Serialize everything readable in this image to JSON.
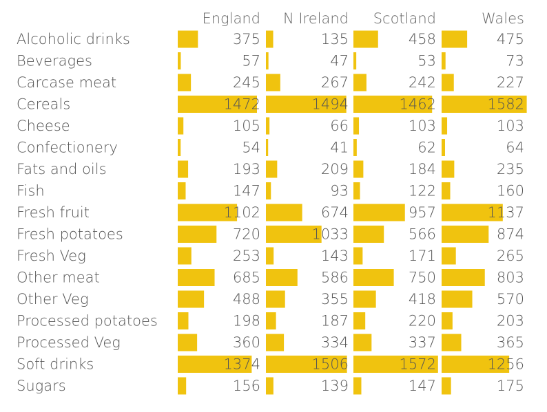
{
  "chart_data": {
    "type": "bar",
    "title": "",
    "xlabel": "",
    "ylabel": "",
    "bar_color": "#f0c30f",
    "columns": [
      "England",
      "N Ireland",
      "Scotland",
      "Wales"
    ],
    "categories": [
      "Alcoholic drinks",
      "Beverages",
      "Carcase meat",
      "Cereals",
      "Cheese",
      "Confectionery",
      "Fats and oils",
      "Fish",
      "Fresh fruit",
      "Fresh potatoes",
      "Fresh Veg",
      "Other meat",
      "Other Veg",
      "Processed potatoes",
      "Processed Veg",
      "Soft drinks",
      "Sugars"
    ],
    "series": [
      {
        "name": "England",
        "values": [
          375,
          57,
          245,
          1472,
          105,
          54,
          193,
          147,
          1102,
          720,
          253,
          685,
          488,
          198,
          360,
          1374,
          156
        ]
      },
      {
        "name": "N Ireland",
        "values": [
          135,
          47,
          267,
          1494,
          66,
          41,
          209,
          93,
          674,
          1033,
          143,
          586,
          355,
          187,
          334,
          1506,
          139
        ]
      },
      {
        "name": "Scotland",
        "values": [
          458,
          53,
          242,
          1462,
          103,
          62,
          184,
          122,
          957,
          566,
          171,
          750,
          418,
          220,
          337,
          1572,
          147
        ]
      },
      {
        "name": "Wales",
        "values": [
          475,
          73,
          227,
          1582,
          103,
          64,
          235,
          160,
          1137,
          874,
          265,
          803,
          570,
          203,
          365,
          1256,
          175
        ]
      }
    ],
    "xlim": [
      0,
      1600
    ]
  }
}
